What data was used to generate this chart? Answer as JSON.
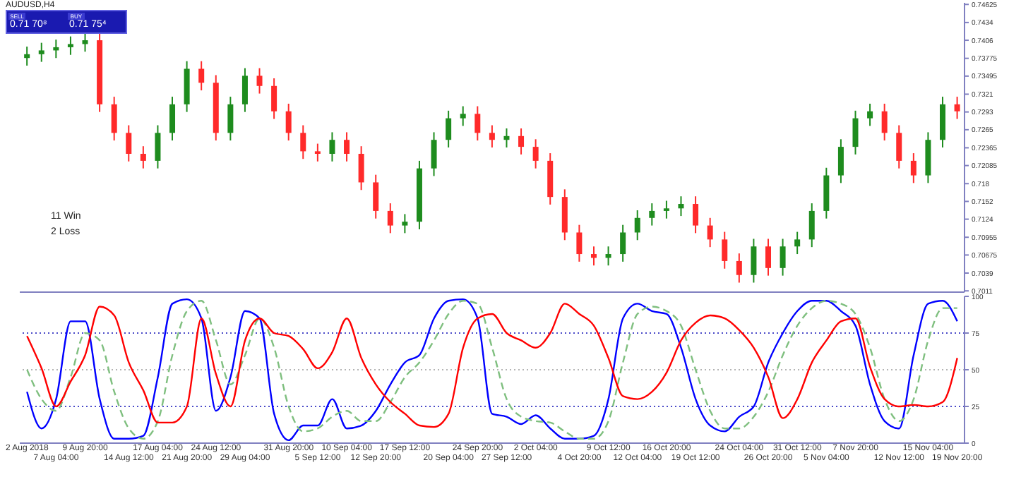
{
  "chart_data": [
    {
      "type": "candlestick",
      "title": "AUDUSD,H4",
      "annotations": [
        "SELL",
        "BUY",
        "0.71 70⁸",
        "0.71 75⁴",
        "11 Win",
        "2 Loss"
      ],
      "categories": [
        null,
        null,
        null,
        null,
        null,
        null,
        null,
        null,
        null,
        null,
        null,
        null,
        null,
        null,
        null,
        null,
        null,
        null,
        null,
        null,
        null,
        null,
        null,
        null,
        null,
        null,
        null,
        null,
        null,
        null,
        null,
        null,
        null,
        null,
        null,
        null,
        null,
        null,
        null,
        null,
        null,
        null,
        null,
        null,
        null,
        null,
        null,
        null,
        null,
        null,
        null,
        null,
        null,
        null,
        null,
        null,
        null,
        null,
        null,
        null,
        null,
        null,
        null,
        null,
        null
      ],
      "ohlc": [
        [
          0.7378,
          0.7396,
          0.7366,
          0.7384
        ],
        [
          0.7384,
          0.7402,
          0.7372,
          0.739
        ],
        [
          0.739,
          0.7407,
          0.7378,
          0.7395
        ],
        [
          0.7395,
          0.7412,
          0.7383,
          0.74
        ],
        [
          0.74,
          0.7418,
          0.7388,
          0.7406
        ],
        [
          0.7406,
          0.7418,
          0.7293,
          0.7305
        ],
        [
          0.7305,
          0.7317,
          0.7248,
          0.726
        ],
        [
          0.726,
          0.7272,
          0.7215,
          0.7227
        ],
        [
          0.7227,
          0.7239,
          0.7204,
          0.7216
        ],
        [
          0.7216,
          0.7272,
          0.7204,
          0.726
        ],
        [
          0.726,
          0.7317,
          0.7248,
          0.7305
        ],
        [
          0.7305,
          0.7373,
          0.7293,
          0.7361
        ],
        [
          0.7361,
          0.7373,
          0.7327,
          0.7339
        ],
        [
          0.7339,
          0.7351,
          0.7248,
          0.726
        ],
        [
          0.726,
          0.7317,
          0.7248,
          0.7305
        ],
        [
          0.7305,
          0.7362,
          0.7293,
          0.735
        ],
        [
          0.735,
          0.7362,
          0.7322,
          0.7334
        ],
        [
          0.7334,
          0.7346,
          0.7282,
          0.7294
        ],
        [
          0.7294,
          0.7306,
          0.7248,
          0.726
        ],
        [
          0.726,
          0.7272,
          0.7219,
          0.7231
        ],
        [
          0.7231,
          0.7243,
          0.7215,
          0.7227
        ],
        [
          0.7227,
          0.7261,
          0.7215,
          0.7249
        ],
        [
          0.7249,
          0.7261,
          0.7215,
          0.7227
        ],
        [
          0.7227,
          0.7239,
          0.717,
          0.7182
        ],
        [
          0.7182,
          0.7194,
          0.7125,
          0.7137
        ],
        [
          0.7137,
          0.7149,
          0.7102,
          0.7114
        ],
        [
          0.7114,
          0.7132,
          0.7102,
          0.712
        ],
        [
          0.712,
          0.7216,
          0.7108,
          0.7204
        ],
        [
          0.7204,
          0.7261,
          0.7192,
          0.7249
        ],
        [
          0.7249,
          0.7295,
          0.7237,
          0.7283
        ],
        [
          0.7283,
          0.7302,
          0.7271,
          0.729
        ],
        [
          0.729,
          0.7302,
          0.7248,
          0.726
        ],
        [
          0.726,
          0.7272,
          0.7237,
          0.7249
        ],
        [
          0.7249,
          0.7267,
          0.7237,
          0.7255
        ],
        [
          0.7255,
          0.7267,
          0.7226,
          0.7238
        ],
        [
          0.7238,
          0.725,
          0.7204,
          0.7216
        ],
        [
          0.7216,
          0.7228,
          0.7147,
          0.7159
        ],
        [
          0.7159,
          0.7171,
          0.7091,
          0.7103
        ],
        [
          0.7103,
          0.7115,
          0.7057,
          0.7069
        ],
        [
          0.7069,
          0.7081,
          0.7051,
          0.7063
        ],
        [
          0.7063,
          0.7081,
          0.7051,
          0.7069
        ],
        [
          0.7069,
          0.7115,
          0.7057,
          0.7103
        ],
        [
          0.7103,
          0.7138,
          0.7091,
          0.7126
        ],
        [
          0.7126,
          0.7149,
          0.7114,
          0.7137
        ],
        [
          0.7137,
          0.7153,
          0.7125,
          0.7141
        ],
        [
          0.7141,
          0.716,
          0.7129,
          0.7148
        ],
        [
          0.7148,
          0.716,
          0.7102,
          0.7114
        ],
        [
          0.7114,
          0.7126,
          0.708,
          0.7092
        ],
        [
          0.7092,
          0.7104,
          0.7046,
          0.7058
        ],
        [
          0.7058,
          0.707,
          0.7024,
          0.7036
        ],
        [
          0.7036,
          0.7093,
          0.7024,
          0.7081
        ],
        [
          0.7081,
          0.7093,
          0.7035,
          0.7047
        ],
        [
          0.7047,
          0.7093,
          0.7035,
          0.7081
        ],
        [
          0.7081,
          0.7104,
          0.7069,
          0.7092
        ],
        [
          0.7092,
          0.7149,
          0.708,
          0.7137
        ],
        [
          0.7137,
          0.7205,
          0.7125,
          0.7193
        ],
        [
          0.7193,
          0.725,
          0.7181,
          0.7238
        ],
        [
          0.7238,
          0.7295,
          0.7226,
          0.7283
        ],
        [
          0.7283,
          0.7306,
          0.7271,
          0.7294
        ],
        [
          0.7294,
          0.7306,
          0.7248,
          0.726
        ],
        [
          0.726,
          0.7272,
          0.7204,
          0.7216
        ],
        [
          0.7216,
          0.7228,
          0.7181,
          0.7193
        ],
        [
          0.7193,
          0.7261,
          0.7181,
          0.7249
        ],
        [
          0.7249,
          0.7317,
          0.7237,
          0.7305
        ],
        [
          0.7305,
          0.7317,
          0.7282,
          0.7294
        ]
      ],
      "colors": [
        "#1e8c1e",
        "#1e8c1e",
        "#1e8c1e",
        "#1e8c1e",
        "#1e8c1e",
        "#ff2a2a",
        "#ff2a2a",
        "#ff2a2a",
        "#ff2a2a",
        "#1e8c1e",
        "#1e8c1e",
        "#1e8c1e",
        "#ff2a2a",
        "#ff2a2a",
        "#1e8c1e",
        "#1e8c1e",
        "#ff2a2a",
        "#ff2a2a",
        "#ff2a2a",
        "#ff2a2a",
        "#ff2a2a",
        "#1e8c1e",
        "#ff2a2a",
        "#ff2a2a",
        "#ff2a2a",
        "#ff2a2a",
        "#1e8c1e",
        "#1e8c1e",
        "#1e8c1e",
        "#1e8c1e",
        "#1e8c1e",
        "#ff2a2a",
        "#ff2a2a",
        "#1e8c1e",
        "#ff2a2a",
        "#ff2a2a",
        "#ff2a2a",
        "#ff2a2a",
        "#ff2a2a",
        "#ff2a2a",
        "#1e8c1e",
        "#1e8c1e",
        "#1e8c1e",
        "#1e8c1e",
        "#1e8c1e",
        "#1e8c1e",
        "#ff2a2a",
        "#ff2a2a",
        "#ff2a2a",
        "#ff2a2a",
        "#1e8c1e",
        "#ff2a2a",
        "#1e8c1e",
        "#1e8c1e",
        "#1e8c1e",
        "#1e8c1e",
        "#1e8c1e",
        "#1e8c1e",
        "#1e8c1e",
        "#ff2a2a",
        "#ff2a2a",
        "#ff2a2a",
        "#1e8c1e",
        "#1e8c1e",
        "#ff2a2a"
      ],
      "ylim": [
        0.7009,
        0.7465
      ],
      "yticks": [
        0.74625,
        0.7434,
        0.7406,
        0.73775,
        0.73495,
        0.7321,
        0.7293,
        0.7265,
        0.72365,
        0.72085,
        0.718,
        0.7152,
        0.7124,
        0.70955,
        0.70675,
        0.7039,
        0.7011
      ],
      "tick_labels": "y",
      "grid": false,
      "legend": false
    },
    {
      "type": "line",
      "categories": [
        "2 Aug 2018",
        null,
        "7 Aug 04:00",
        null,
        "9 Aug 20:00",
        null,
        null,
        "14 Aug 12:00",
        null,
        "17 Aug 04:00",
        null,
        "21 Aug 20:00",
        null,
        "24 Aug 12:00",
        null,
        "29 Aug 04:00",
        null,
        null,
        "31 Aug 20:00",
        null,
        "5 Sep 12:00",
        null,
        "10 Sep 04:00",
        null,
        "12 Sep 20:00",
        null,
        "17 Sep 12:00",
        null,
        null,
        "20 Sep 04:00",
        null,
        "24 Sep 20:00",
        null,
        "27 Sep 12:00",
        null,
        "2 Oct 04:00",
        null,
        null,
        "4 Oct 20:00",
        null,
        "9 Oct 12:00",
        null,
        "12 Oct 04:00",
        null,
        "16 Oct 20:00",
        null,
        "19 Oct 12:00",
        null,
        null,
        "24 Oct 04:00",
        null,
        "26 Oct 20:00",
        null,
        "31 Oct 12:00",
        null,
        "5 Nov 04:00",
        null,
        "7 Nov 20:00",
        null,
        null,
        "12 Nov 12:00",
        null,
        "15 Nov 04:00",
        null,
        "19 Nov 20:00"
      ],
      "series": [
        {
          "color": "#0000ff",
          "line_style": "solid",
          "values": [
            35,
            10,
            30,
            83,
            83,
            30,
            3,
            3,
            5,
            45,
            95,
            98,
            85,
            22,
            45,
            90,
            85,
            20,
            2,
            12,
            12,
            30,
            10,
            12,
            22,
            40,
            55,
            60,
            85,
            97,
            98,
            85,
            20,
            18,
            13,
            19,
            10,
            3,
            3,
            5,
            30,
            85,
            95,
            90,
            88,
            65,
            30,
            12,
            8,
            18,
            25,
            55,
            75,
            90,
            97,
            97,
            90,
            80,
            40,
            15,
            10,
            60,
            95,
            97,
            83
          ]
        },
        {
          "color": "#7fbf7f",
          "line_style": "dashed",
          "values": [
            50,
            30,
            22,
            45,
            75,
            70,
            35,
            10,
            3,
            15,
            60,
            90,
            97,
            70,
            40,
            60,
            85,
            65,
            25,
            8,
            10,
            18,
            22,
            15,
            15,
            28,
            45,
            55,
            70,
            88,
            97,
            95,
            65,
            30,
            18,
            15,
            14,
            8,
            3,
            3,
            15,
            55,
            88,
            93,
            90,
            80,
            50,
            22,
            10,
            10,
            18,
            35,
            60,
            80,
            92,
            97,
            95,
            88,
            65,
            30,
            15,
            30,
            70,
            92,
            92
          ]
        },
        {
          "color": "#ff0000",
          "line_style": "solid",
          "values": [
            73,
            51,
            25,
            42,
            60,
            93,
            87,
            55,
            36,
            14,
            14,
            25,
            85,
            47,
            25,
            70,
            85,
            75,
            73,
            64,
            51,
            62,
            85,
            58,
            40,
            28,
            20,
            12,
            11,
            20,
            65,
            85,
            88,
            75,
            70,
            65,
            75,
            95,
            88,
            80,
            58,
            32,
            30,
            35,
            48,
            70,
            82,
            87,
            85,
            77,
            65,
            45,
            17,
            30,
            55,
            70,
            83,
            85,
            52,
            30,
            25,
            26,
            25,
            28,
            58
          ]
        }
      ],
      "ylim": [
        0,
        100
      ],
      "yticks": [
        0,
        25,
        50,
        75,
        100
      ],
      "ref_lines": [
        {
          "axis": "y",
          "value": 75,
          "color": "#4a4ac8",
          "line_style": "dotted"
        },
        {
          "axis": "y",
          "value": 50,
          "color": "#b4b4b4",
          "line_style": "dotted"
        },
        {
          "axis": "y",
          "value": 25,
          "color": "#4a4ac8",
          "line_style": "dotted"
        }
      ],
      "marker": "none",
      "grid": false,
      "legend": false
    }
  ]
}
